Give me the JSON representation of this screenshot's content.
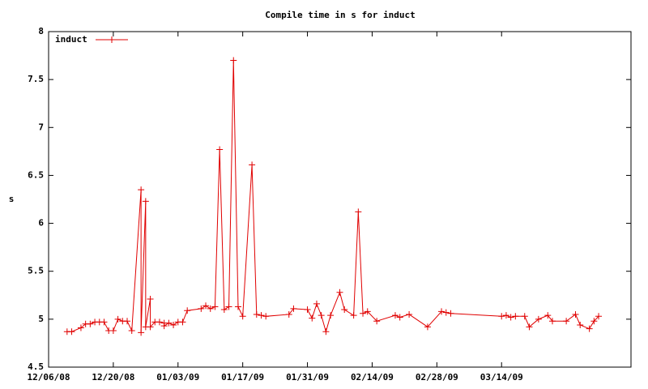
{
  "chart_data": {
    "type": "line",
    "title": "Compile time in s for induct",
    "y_label": "s",
    "x": [
      "2008-12-10",
      "2008-12-11",
      "2008-12-13",
      "2008-12-14",
      "2008-12-15",
      "2008-12-16",
      "2008-12-17",
      "2008-12-18",
      "2008-12-19",
      "2008-12-20",
      "2008-12-21",
      "2008-12-22",
      "2008-12-23",
      "2008-12-24",
      "2008-12-26",
      "2008-12-26",
      "2008-12-27",
      "2008-12-27",
      "2008-12-28",
      "2008-12-28",
      "2008-12-29",
      "2008-12-30",
      "2008-12-31",
      "2008-12-31",
      "2009-01-01",
      "2009-01-02",
      "2009-01-03",
      "2009-01-04",
      "2009-01-05",
      "2009-01-08",
      "2009-01-09",
      "2009-01-10",
      "2009-01-11",
      "2009-01-12",
      "2009-01-13",
      "2009-01-14",
      "2009-01-15",
      "2009-01-16",
      "2009-01-17",
      "2009-01-19",
      "2009-01-20",
      "2009-01-21",
      "2009-01-22",
      "2009-01-27",
      "2009-01-28",
      "2009-01-31",
      "2009-02-01",
      "2009-02-02",
      "2009-02-03",
      "2009-02-04",
      "2009-02-05",
      "2009-02-07",
      "2009-02-08",
      "2009-02-10",
      "2009-02-11",
      "2009-02-12",
      "2009-02-13",
      "2009-02-15",
      "2009-02-19",
      "2009-02-20",
      "2009-02-22",
      "2009-02-26",
      "2009-03-01",
      "2009-03-02",
      "2009-03-03",
      "2009-03-14",
      "2009-03-15",
      "2009-03-16",
      "2009-03-17",
      "2009-03-19",
      "2009-03-20",
      "2009-03-22",
      "2009-03-24",
      "2009-03-25",
      "2009-03-28",
      "2009-03-30",
      "2009-03-31",
      "2009-04-02",
      "2009-04-03",
      "2009-04-04"
    ],
    "series": [
      {
        "name": "induct",
        "color": "#e00000",
        "values": [
          4.87,
          4.87,
          4.91,
          4.95,
          4.95,
          4.97,
          4.97,
          4.97,
          4.88,
          4.88,
          5.0,
          4.98,
          4.98,
          4.88,
          6.35,
          4.86,
          6.23,
          4.92,
          5.21,
          4.92,
          4.97,
          4.97,
          4.96,
          4.93,
          4.96,
          4.94,
          4.97,
          4.97,
          5.09,
          5.11,
          5.14,
          5.11,
          5.13,
          6.77,
          5.1,
          5.13,
          7.7,
          5.13,
          5.03,
          6.61,
          5.05,
          5.04,
          5.03,
          5.05,
          5.11,
          5.1,
          5.01,
          5.16,
          5.04,
          4.87,
          5.04,
          5.28,
          5.1,
          5.04,
          6.12,
          5.06,
          5.08,
          4.98,
          5.04,
          5.02,
          5.05,
          4.92,
          5.08,
          5.07,
          5.06,
          5.03,
          5.04,
          5.02,
          5.03,
          5.03,
          4.92,
          5.0,
          5.04,
          4.98,
          4.98,
          5.05,
          4.94,
          4.9,
          4.98,
          5.03
        ]
      }
    ],
    "xlim": [
      "2008-12-06",
      "2009-04-11"
    ],
    "xticks": [
      {
        "value": "2008-12-06",
        "label": "12/06/08"
      },
      {
        "value": "2008-12-20",
        "label": "12/20/08"
      },
      {
        "value": "2009-01-03",
        "label": "01/03/09"
      },
      {
        "value": "2009-01-17",
        "label": "01/17/09"
      },
      {
        "value": "2009-01-31",
        "label": "01/31/09"
      },
      {
        "value": "2009-02-14",
        "label": "02/14/09"
      },
      {
        "value": "2009-02-28",
        "label": "02/28/09"
      },
      {
        "value": "2009-03-14",
        "label": "03/14/09"
      }
    ],
    "ylim": [
      4.5,
      8
    ],
    "yticks": [
      4.5,
      5,
      5.5,
      6,
      6.5,
      7,
      7.5,
      8
    ],
    "legend": "top-left"
  }
}
